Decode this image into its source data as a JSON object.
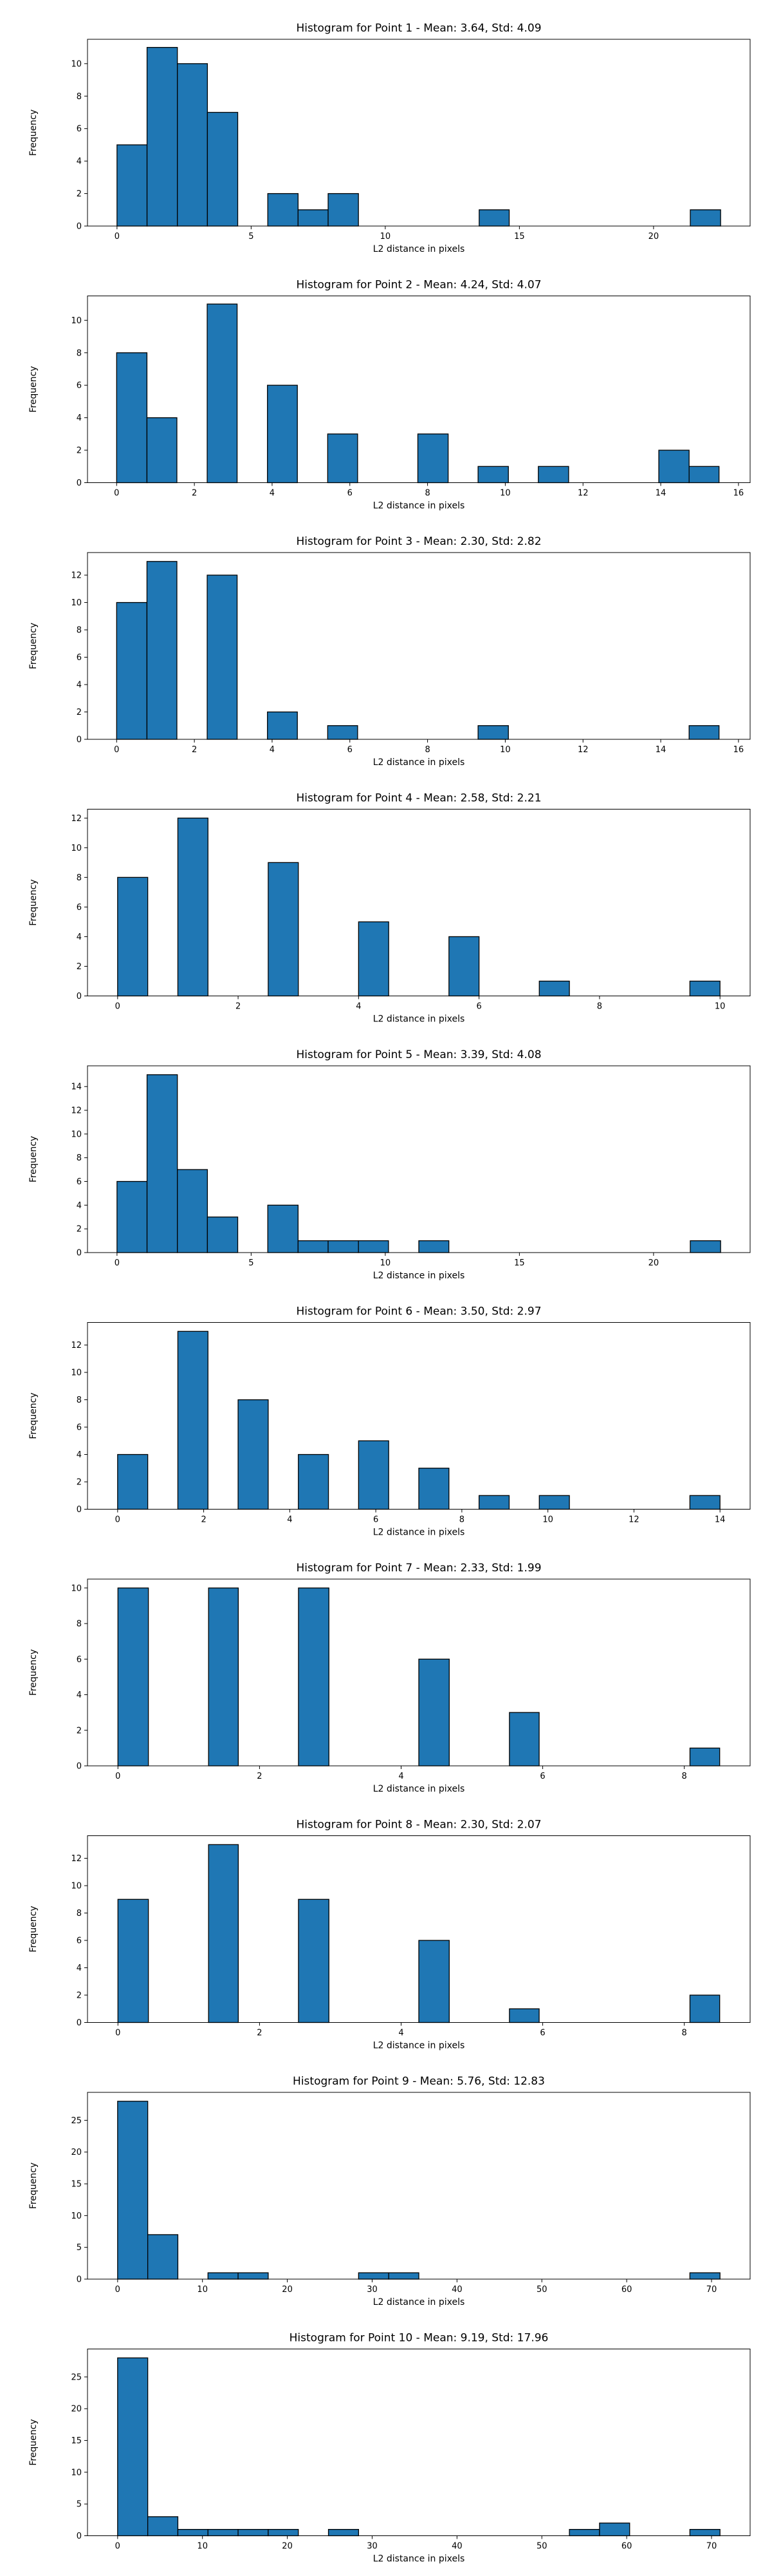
{
  "figure": {
    "bar_color": "#1f77b4",
    "edge_color": "#000000"
  },
  "chart_data": [
    {
      "type": "bar",
      "title": "Histogram for Point 1 - Mean: 3.64, Std: 4.09",
      "xlabel": "L2 distance in pixels",
      "ylabel": "Frequency",
      "xlim": [
        -1.1,
        23.6
      ],
      "ylim": [
        0,
        11.5
      ],
      "xticks": [
        0,
        5,
        10,
        15,
        20
      ],
      "yticks": [
        0,
        2,
        4,
        6,
        8,
        10
      ],
      "bins": [
        {
          "x0": 0.0,
          "x1": 1.12,
          "count": 5
        },
        {
          "x0": 1.12,
          "x1": 2.25,
          "count": 11
        },
        {
          "x0": 2.25,
          "x1": 3.37,
          "count": 10
        },
        {
          "x0": 3.37,
          "x1": 4.5,
          "count": 7
        },
        {
          "x0": 5.62,
          "x1": 6.75,
          "count": 2
        },
        {
          "x0": 6.75,
          "x1": 7.87,
          "count": 1
        },
        {
          "x0": 7.87,
          "x1": 9.0,
          "count": 2
        },
        {
          "x0": 13.5,
          "x1": 14.62,
          "count": 1
        },
        {
          "x0": 21.37,
          "x1": 22.5,
          "count": 1
        }
      ]
    },
    {
      "type": "bar",
      "title": "Histogram for Point 2 - Mean: 4.24, Std: 4.07",
      "xlabel": "L2 distance in pixels",
      "ylabel": "Frequency",
      "xlim": [
        -0.75,
        16.3
      ],
      "ylim": [
        0,
        11.5
      ],
      "xticks": [
        0,
        2,
        4,
        6,
        8,
        10,
        12,
        14,
        16
      ],
      "yticks": [
        0,
        2,
        4,
        6,
        8,
        10
      ],
      "bins": [
        {
          "x0": 0.0,
          "x1": 0.78,
          "count": 8
        },
        {
          "x0": 0.78,
          "x1": 1.55,
          "count": 4
        },
        {
          "x0": 2.33,
          "x1": 3.1,
          "count": 11
        },
        {
          "x0": 3.88,
          "x1": 4.65,
          "count": 6
        },
        {
          "x0": 5.43,
          "x1": 6.2,
          "count": 3
        },
        {
          "x0": 7.75,
          "x1": 8.53,
          "count": 3
        },
        {
          "x0": 9.3,
          "x1": 10.08,
          "count": 1
        },
        {
          "x0": 10.85,
          "x1": 11.63,
          "count": 1
        },
        {
          "x0": 13.95,
          "x1": 14.73,
          "count": 2
        },
        {
          "x0": 14.73,
          "x1": 15.5,
          "count": 1
        }
      ]
    },
    {
      "type": "bar",
      "title": "Histogram for Point 3 - Mean: 2.30, Std: 2.82",
      "xlabel": "L2 distance in pixels",
      "ylabel": "Frequency",
      "xlim": [
        -0.75,
        16.3
      ],
      "ylim": [
        0,
        13.65
      ],
      "xticks": [
        0,
        2,
        4,
        6,
        8,
        10,
        12,
        14,
        16
      ],
      "yticks": [
        0,
        2,
        4,
        6,
        8,
        10,
        12
      ],
      "bins": [
        {
          "x0": 0.0,
          "x1": 0.78,
          "count": 10
        },
        {
          "x0": 0.78,
          "x1": 1.55,
          "count": 13
        },
        {
          "x0": 2.33,
          "x1": 3.1,
          "count": 12
        },
        {
          "x0": 3.88,
          "x1": 4.65,
          "count": 2
        },
        {
          "x0": 5.43,
          "x1": 6.2,
          "count": 1
        },
        {
          "x0": 9.3,
          "x1": 10.08,
          "count": 1
        },
        {
          "x0": 14.73,
          "x1": 15.5,
          "count": 1
        }
      ]
    },
    {
      "type": "bar",
      "title": "Histogram for Point 4 - Mean: 2.58, Std: 2.21",
      "xlabel": "L2 distance in pixels",
      "ylabel": "Frequency",
      "xlim": [
        -0.5,
        10.5
      ],
      "ylim": [
        0,
        12.6
      ],
      "xticks": [
        0,
        2,
        4,
        6,
        8,
        10
      ],
      "yticks": [
        0,
        2,
        4,
        6,
        8,
        10,
        12
      ],
      "bins": [
        {
          "x0": 0.0,
          "x1": 0.5,
          "count": 8
        },
        {
          "x0": 1.0,
          "x1": 1.5,
          "count": 12
        },
        {
          "x0": 2.5,
          "x1": 3.0,
          "count": 9
        },
        {
          "x0": 4.0,
          "x1": 4.5,
          "count": 5
        },
        {
          "x0": 5.5,
          "x1": 6.0,
          "count": 4
        },
        {
          "x0": 7.0,
          "x1": 7.5,
          "count": 1
        },
        {
          "x0": 9.5,
          "x1": 10.0,
          "count": 1
        }
      ]
    },
    {
      "type": "bar",
      "title": "Histogram for Point 5 - Mean: 3.39, Std: 4.08",
      "xlabel": "L2 distance in pixels",
      "ylabel": "Frequency",
      "xlim": [
        -1.1,
        23.6
      ],
      "ylim": [
        0,
        15.75
      ],
      "xticks": [
        0,
        5,
        10,
        15,
        20
      ],
      "yticks": [
        0,
        2,
        4,
        6,
        8,
        10,
        12,
        14
      ],
      "bins": [
        {
          "x0": 0.0,
          "x1": 1.12,
          "count": 6
        },
        {
          "x0": 1.12,
          "x1": 2.25,
          "count": 15
        },
        {
          "x0": 2.25,
          "x1": 3.37,
          "count": 7
        },
        {
          "x0": 3.37,
          "x1": 4.5,
          "count": 3
        },
        {
          "x0": 5.62,
          "x1": 6.75,
          "count": 4
        },
        {
          "x0": 6.75,
          "x1": 7.87,
          "count": 1
        },
        {
          "x0": 7.87,
          "x1": 9.0,
          "count": 1
        },
        {
          "x0": 9.0,
          "x1": 10.12,
          "count": 1
        },
        {
          "x0": 11.25,
          "x1": 12.37,
          "count": 1
        },
        {
          "x0": 21.37,
          "x1": 22.5,
          "count": 1
        }
      ]
    },
    {
      "type": "bar",
      "title": "Histogram for Point 6 - Mean: 3.50, Std: 2.97",
      "xlabel": "L2 distance in pixels",
      "ylabel": "Frequency",
      "xlim": [
        -0.7,
        14.7
      ],
      "ylim": [
        0,
        13.65
      ],
      "xticks": [
        0,
        2,
        4,
        6,
        8,
        10,
        12,
        14
      ],
      "yticks": [
        0,
        2,
        4,
        6,
        8,
        10,
        12
      ],
      "bins": [
        {
          "x0": 0.0,
          "x1": 0.7,
          "count": 4
        },
        {
          "x0": 1.4,
          "x1": 2.1,
          "count": 13
        },
        {
          "x0": 2.8,
          "x1": 3.5,
          "count": 8
        },
        {
          "x0": 4.2,
          "x1": 4.9,
          "count": 4
        },
        {
          "x0": 5.6,
          "x1": 6.3,
          "count": 5
        },
        {
          "x0": 7.0,
          "x1": 7.7,
          "count": 3
        },
        {
          "x0": 8.4,
          "x1": 9.1,
          "count": 1
        },
        {
          "x0": 9.8,
          "x1": 10.5,
          "count": 1
        },
        {
          "x0": 13.3,
          "x1": 14.0,
          "count": 1
        }
      ]
    },
    {
      "type": "bar",
      "title": "Histogram for Point 7 - Mean: 2.33, Std: 1.99",
      "xlabel": "L2 distance in pixels",
      "ylabel": "Frequency",
      "xlim": [
        -0.43,
        8.93
      ],
      "ylim": [
        0,
        10.5
      ],
      "xticks": [
        0,
        2,
        4,
        6,
        8
      ],
      "yticks": [
        0,
        2,
        4,
        6,
        8,
        10
      ],
      "bins": [
        {
          "x0": 0.0,
          "x1": 0.43,
          "count": 10
        },
        {
          "x0": 1.28,
          "x1": 1.7,
          "count": 10
        },
        {
          "x0": 2.55,
          "x1": 2.98,
          "count": 10
        },
        {
          "x0": 4.25,
          "x1": 4.68,
          "count": 6
        },
        {
          "x0": 5.53,
          "x1": 5.95,
          "count": 3
        },
        {
          "x0": 8.08,
          "x1": 8.5,
          "count": 1
        }
      ]
    },
    {
      "type": "bar",
      "title": "Histogram for Point 8 - Mean: 2.30, Std: 2.07",
      "xlabel": "L2 distance in pixels",
      "ylabel": "Frequency",
      "xlim": [
        -0.43,
        8.93
      ],
      "ylim": [
        0,
        13.65
      ],
      "xticks": [
        0,
        2,
        4,
        6,
        8
      ],
      "yticks": [
        0,
        2,
        4,
        6,
        8,
        10,
        12
      ],
      "bins": [
        {
          "x0": 0.0,
          "x1": 0.43,
          "count": 9
        },
        {
          "x0": 1.28,
          "x1": 1.7,
          "count": 13
        },
        {
          "x0": 2.55,
          "x1": 2.98,
          "count": 9
        },
        {
          "x0": 4.25,
          "x1": 4.68,
          "count": 6
        },
        {
          "x0": 5.53,
          "x1": 5.95,
          "count": 1
        },
        {
          "x0": 8.08,
          "x1": 8.5,
          "count": 2
        }
      ]
    },
    {
      "type": "bar",
      "title": "Histogram for Point 9 - Mean: 5.76, Std: 12.83",
      "xlabel": "L2 distance in pixels",
      "ylabel": "Frequency",
      "xlim": [
        -3.55,
        74.55
      ],
      "ylim": [
        0,
        29.4
      ],
      "xticks": [
        0,
        10,
        20,
        30,
        40,
        50,
        60,
        70
      ],
      "yticks": [
        0,
        5,
        10,
        15,
        20,
        25
      ],
      "bins": [
        {
          "x0": 0.0,
          "x1": 3.55,
          "count": 28
        },
        {
          "x0": 3.55,
          "x1": 7.1,
          "count": 7
        },
        {
          "x0": 10.65,
          "x1": 14.2,
          "count": 1
        },
        {
          "x0": 14.2,
          "x1": 17.75,
          "count": 1
        },
        {
          "x0": 28.4,
          "x1": 31.95,
          "count": 1
        },
        {
          "x0": 31.95,
          "x1": 35.5,
          "count": 1
        },
        {
          "x0": 67.45,
          "x1": 71.0,
          "count": 1
        }
      ]
    },
    {
      "type": "bar",
      "title": "Histogram for Point 10 - Mean: 9.19, Std: 17.96",
      "xlabel": "L2 distance in pixels",
      "ylabel": "Frequency",
      "xlim": [
        -3.55,
        74.55
      ],
      "ylim": [
        0,
        29.4
      ],
      "xticks": [
        0,
        10,
        20,
        30,
        40,
        50,
        60,
        70
      ],
      "yticks": [
        0,
        5,
        10,
        15,
        20,
        25
      ],
      "bins": [
        {
          "x0": 0.0,
          "x1": 3.55,
          "count": 28
        },
        {
          "x0": 3.55,
          "x1": 7.1,
          "count": 3
        },
        {
          "x0": 7.1,
          "x1": 10.65,
          "count": 1
        },
        {
          "x0": 10.65,
          "x1": 14.2,
          "count": 1
        },
        {
          "x0": 14.2,
          "x1": 17.75,
          "count": 1
        },
        {
          "x0": 17.75,
          "x1": 21.3,
          "count": 1
        },
        {
          "x0": 24.85,
          "x1": 28.4,
          "count": 1
        },
        {
          "x0": 53.25,
          "x1": 56.8,
          "count": 1
        },
        {
          "x0": 56.8,
          "x1": 60.35,
          "count": 2
        },
        {
          "x0": 67.45,
          "x1": 71.0,
          "count": 1
        }
      ]
    }
  ]
}
